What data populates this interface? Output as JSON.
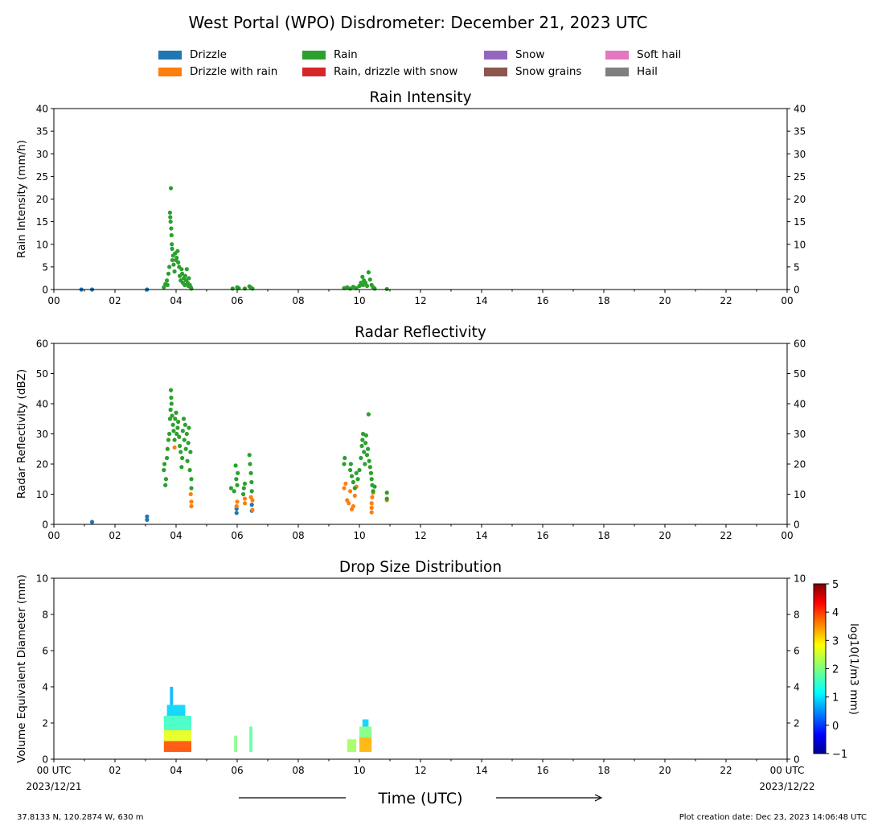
{
  "title": "West Portal (WPO) Disdrometer: December 21, 2023 UTC",
  "legend": [
    {
      "label": "Drizzle",
      "color": "#1f77b4"
    },
    {
      "label": "Rain",
      "color": "#2ca02c"
    },
    {
      "label": "Snow",
      "color": "#9467bd"
    },
    {
      "label": "Soft hail",
      "color": "#e377c2"
    },
    {
      "label": "Drizzle with rain",
      "color": "#ff7f0e"
    },
    {
      "label": "Rain, drizzle with snow",
      "color": "#d62728"
    },
    {
      "label": "Snow grains",
      "color": "#8c564b"
    },
    {
      "label": "Hail",
      "color": "#7f7f7f"
    }
  ],
  "footer": {
    "location": "37.8133 N, 120.2874 W, 630 m",
    "creation": "Plot creation date: Dec 23, 2023 14:06:48 UTC"
  },
  "xaxis_label": "Time (UTC)",
  "chart_data": [
    {
      "type": "scatter",
      "title": "Rain Intensity",
      "ylabel": "Rain Intensity (mm/h)",
      "xlim": [
        0,
        24
      ],
      "ylim": [
        0,
        40
      ],
      "yticks": [
        0,
        5,
        10,
        15,
        20,
        25,
        30,
        35,
        40
      ],
      "xticklabels": [
        "00",
        "02",
        "04",
        "06",
        "08",
        "10",
        "12",
        "14",
        "16",
        "18",
        "20",
        "22",
        "00"
      ],
      "series": [
        {
          "name": "Drizzle",
          "color": "#1f77b4",
          "points": [
            [
              0.9,
              0
            ],
            [
              1.25,
              0
            ],
            [
              3.05,
              0
            ]
          ]
        },
        {
          "name": "Rain",
          "color": "#2ca02c",
          "points": [
            [
              3.6,
              0.5
            ],
            [
              3.65,
              1.2
            ],
            [
              3.7,
              2.0
            ],
            [
              3.72,
              1.0
            ],
            [
              3.75,
              3.5
            ],
            [
              3.78,
              5.0
            ],
            [
              3.8,
              17.0
            ],
            [
              3.81,
              16.0
            ],
            [
              3.82,
              15.0
            ],
            [
              3.83,
              22.4
            ],
            [
              3.84,
              13.5
            ],
            [
              3.85,
              12.0
            ],
            [
              3.86,
              10.0
            ],
            [
              3.87,
              9.0
            ],
            [
              3.88,
              6.5
            ],
            [
              3.9,
              7.5
            ],
            [
              3.92,
              5.5
            ],
            [
              3.95,
              4.0
            ],
            [
              3.97,
              8.0
            ],
            [
              4.0,
              6.5
            ],
            [
              4.02,
              7.0
            ],
            [
              4.05,
              8.5
            ],
            [
              4.07,
              6.0
            ],
            [
              4.1,
              5.0
            ],
            [
              4.12,
              3.0
            ],
            [
              4.15,
              2.0
            ],
            [
              4.18,
              4.5
            ],
            [
              4.2,
              3.5
            ],
            [
              4.22,
              1.5
            ],
            [
              4.25,
              2.5
            ],
            [
              4.28,
              1.0
            ],
            [
              4.3,
              3.0
            ],
            [
              4.33,
              2.0
            ],
            [
              4.35,
              4.5
            ],
            [
              4.38,
              1.5
            ],
            [
              4.4,
              0.8
            ],
            [
              4.42,
              2.5
            ],
            [
              4.45,
              1.0
            ],
            [
              4.48,
              0.5
            ],
            [
              4.5,
              0.2
            ],
            [
              5.85,
              0.2
            ],
            [
              6.0,
              0.5
            ],
            [
              6.05,
              0.3
            ],
            [
              6.25,
              0.2
            ],
            [
              6.4,
              0.7
            ],
            [
              6.45,
              0.4
            ],
            [
              6.5,
              0.2
            ],
            [
              9.5,
              0.3
            ],
            [
              9.6,
              0.5
            ],
            [
              9.7,
              0.2
            ],
            [
              9.8,
              0.6
            ],
            [
              9.9,
              0.3
            ],
            [
              10.0,
              0.8
            ],
            [
              10.05,
              1.5
            ],
            [
              10.1,
              2.8
            ],
            [
              10.12,
              1.0
            ],
            [
              10.15,
              2.0
            ],
            [
              10.2,
              1.5
            ],
            [
              10.25,
              0.8
            ],
            [
              10.3,
              3.8
            ],
            [
              10.35,
              2.2
            ],
            [
              10.4,
              1.0
            ],
            [
              10.45,
              0.5
            ],
            [
              10.5,
              0.2
            ],
            [
              10.9,
              0.1
            ]
          ]
        }
      ]
    },
    {
      "type": "scatter",
      "title": "Radar Reflectivity",
      "ylabel": "Radar Reflectivity (dBZ)",
      "xlim": [
        0,
        24
      ],
      "ylim": [
        0,
        60
      ],
      "yticks": [
        0,
        10,
        20,
        30,
        40,
        50,
        60
      ],
      "xticklabels": [
        "00",
        "02",
        "04",
        "06",
        "08",
        "10",
        "12",
        "14",
        "16",
        "18",
        "20",
        "22",
        "00"
      ],
      "series": [
        {
          "name": "Drizzle",
          "color": "#1f77b4",
          "points": [
            [
              1.25,
              0.8
            ],
            [
              3.05,
              1.5
            ],
            [
              3.05,
              2.6
            ],
            [
              5.98,
              3.8
            ],
            [
              5.98,
              5.2
            ],
            [
              6.48,
              4.5
            ],
            [
              6.48,
              6.5
            ]
          ]
        },
        {
          "name": "Drizzle with rain",
          "color": "#ff7f0e",
          "points": [
            [
              3.95,
              25.5
            ],
            [
              4.5,
              6.0
            ],
            [
              4.5,
              7.5
            ],
            [
              4.48,
              10.0
            ],
            [
              5.98,
              6.0
            ],
            [
              6.0,
              7.5
            ],
            [
              6.25,
              8.5
            ],
            [
              6.25,
              7.0
            ],
            [
              6.45,
              9.0
            ],
            [
              6.5,
              4.8
            ],
            [
              6.5,
              8.0
            ],
            [
              9.5,
              12.0
            ],
            [
              9.55,
              13.5
            ],
            [
              9.6,
              8.0
            ],
            [
              9.65,
              7.0
            ],
            [
              9.7,
              11.0
            ],
            [
              9.75,
              5.0
            ],
            [
              9.8,
              6.0
            ],
            [
              9.85,
              9.5
            ],
            [
              9.9,
              12.5
            ],
            [
              10.4,
              4.0
            ],
            [
              10.4,
              5.5
            ],
            [
              10.4,
              7.0
            ],
            [
              10.42,
              9.0
            ],
            [
              10.45,
              10.5
            ],
            [
              10.9,
              8.0
            ]
          ]
        },
        {
          "name": "Rain",
          "color": "#2ca02c",
          "points": [
            [
              3.6,
              18.0
            ],
            [
              3.62,
              20.0
            ],
            [
              3.65,
              13.0
            ],
            [
              3.67,
              15.0
            ],
            [
              3.7,
              22.0
            ],
            [
              3.72,
              25.0
            ],
            [
              3.75,
              28.0
            ],
            [
              3.78,
              30.0
            ],
            [
              3.8,
              35.0
            ],
            [
              3.82,
              38.0
            ],
            [
              3.83,
              44.5
            ],
            [
              3.84,
              42.0
            ],
            [
              3.85,
              40.0
            ],
            [
              3.87,
              36.0
            ],
            [
              3.9,
              33.0
            ],
            [
              3.92,
              31.0
            ],
            [
              3.95,
              28.0
            ],
            [
              3.97,
              35.0
            ],
            [
              4.0,
              37.0
            ],
            [
              4.02,
              30.0
            ],
            [
              4.05,
              32.0
            ],
            [
              4.07,
              34.0
            ],
            [
              4.1,
              29.0
            ],
            [
              4.12,
              26.0
            ],
            [
              4.15,
              24.0
            ],
            [
              4.18,
              19.0
            ],
            [
              4.2,
              22.0
            ],
            [
              4.22,
              31.0
            ],
            [
              4.25,
              35.0
            ],
            [
              4.27,
              28.0
            ],
            [
              4.3,
              33.0
            ],
            [
              4.32,
              25.0
            ],
            [
              4.35,
              30.0
            ],
            [
              4.37,
              21.0
            ],
            [
              4.4,
              27.0
            ],
            [
              4.42,
              32.0
            ],
            [
              4.45,
              18.0
            ],
            [
              4.47,
              24.0
            ],
            [
              4.5,
              12.0
            ],
            [
              4.5,
              15.0
            ],
            [
              5.8,
              12.0
            ],
            [
              5.9,
              11.0
            ],
            [
              5.95,
              19.5
            ],
            [
              5.97,
              15.0
            ],
            [
              6.0,
              13.0
            ],
            [
              6.02,
              17.0
            ],
            [
              6.2,
              10.0
            ],
            [
              6.22,
              12.0
            ],
            [
              6.25,
              13.5
            ],
            [
              6.4,
              23.0
            ],
            [
              6.42,
              20.0
            ],
            [
              6.45,
              17.0
            ],
            [
              6.47,
              14.0
            ],
            [
              6.48,
              11.0
            ],
            [
              9.5,
              20.0
            ],
            [
              9.52,
              22.0
            ],
            [
              9.7,
              18.0
            ],
            [
              9.72,
              20.0
            ],
            [
              9.75,
              16.0
            ],
            [
              9.8,
              14.0
            ],
            [
              9.85,
              12.0
            ],
            [
              9.9,
              17.0
            ],
            [
              9.95,
              15.0
            ],
            [
              10.0,
              18.0
            ],
            [
              10.05,
              22.0
            ],
            [
              10.08,
              26.0
            ],
            [
              10.1,
              28.0
            ],
            [
              10.12,
              30.0
            ],
            [
              10.15,
              24.0
            ],
            [
              10.18,
              20.0
            ],
            [
              10.2,
              27.0
            ],
            [
              10.22,
              29.5
            ],
            [
              10.25,
              23.0
            ],
            [
              10.28,
              25.0
            ],
            [
              10.3,
              36.5
            ],
            [
              10.32,
              21.0
            ],
            [
              10.35,
              19.0
            ],
            [
              10.38,
              17.0
            ],
            [
              10.4,
              15.0
            ],
            [
              10.42,
              13.0
            ],
            [
              10.45,
              11.0
            ],
            [
              10.5,
              12.5
            ],
            [
              10.9,
              10.5
            ],
            [
              10.9,
              8.5
            ]
          ]
        }
      ]
    },
    {
      "type": "heatmap",
      "title": "Drop Size Distribution",
      "ylabel": "Volume Equivalent Diameter (mm)",
      "xlim": [
        0,
        24
      ],
      "ylim": [
        0,
        10
      ],
      "yticks": [
        0,
        2,
        4,
        6,
        8,
        10
      ],
      "xticklabels": [
        "00 UTC",
        "02",
        "04",
        "06",
        "08",
        "10",
        "12",
        "14",
        "16",
        "18",
        "20",
        "22",
        "00 UTC"
      ],
      "xticklabels_sub": [
        "2023/12/21",
        "",
        "",
        "",
        "",
        "",
        "",
        "",
        "",
        "",
        "",
        "",
        "2023/12/22"
      ],
      "colorbar": {
        "label": "log10(1/m3 mm)",
        "min": -1,
        "max": 5,
        "ticks": [
          -1,
          0,
          1,
          2,
          3,
          4,
          5
        ]
      },
      "cells": [
        {
          "t0": 3.6,
          "t1": 4.5,
          "d0": 0.4,
          "d1": 1.0,
          "v": 3.8
        },
        {
          "t0": 3.6,
          "t1": 4.5,
          "d0": 1.0,
          "d1": 1.6,
          "v": 2.6
        },
        {
          "t0": 3.6,
          "t1": 4.5,
          "d0": 1.6,
          "d1": 2.4,
          "v": 1.6
        },
        {
          "t0": 3.7,
          "t1": 4.3,
          "d0": 2.4,
          "d1": 3.0,
          "v": 1.0
        },
        {
          "t0": 3.8,
          "t1": 3.9,
          "d0": 3.0,
          "d1": 4.0,
          "v": 0.8
        },
        {
          "t0": 5.9,
          "t1": 6.0,
          "d0": 0.4,
          "d1": 1.3,
          "v": 2.0
        },
        {
          "t0": 6.4,
          "t1": 6.5,
          "d0": 0.4,
          "d1": 1.8,
          "v": 1.8
        },
        {
          "t0": 9.6,
          "t1": 9.9,
          "d0": 0.4,
          "d1": 1.1,
          "v": 2.2
        },
        {
          "t0": 10.0,
          "t1": 10.4,
          "d0": 0.4,
          "d1": 1.2,
          "v": 3.2
        },
        {
          "t0": 10.0,
          "t1": 10.4,
          "d0": 1.2,
          "d1": 1.8,
          "v": 2.0
        },
        {
          "t0": 10.1,
          "t1": 10.3,
          "d0": 1.8,
          "d1": 2.2,
          "v": 1.0
        }
      ]
    }
  ]
}
